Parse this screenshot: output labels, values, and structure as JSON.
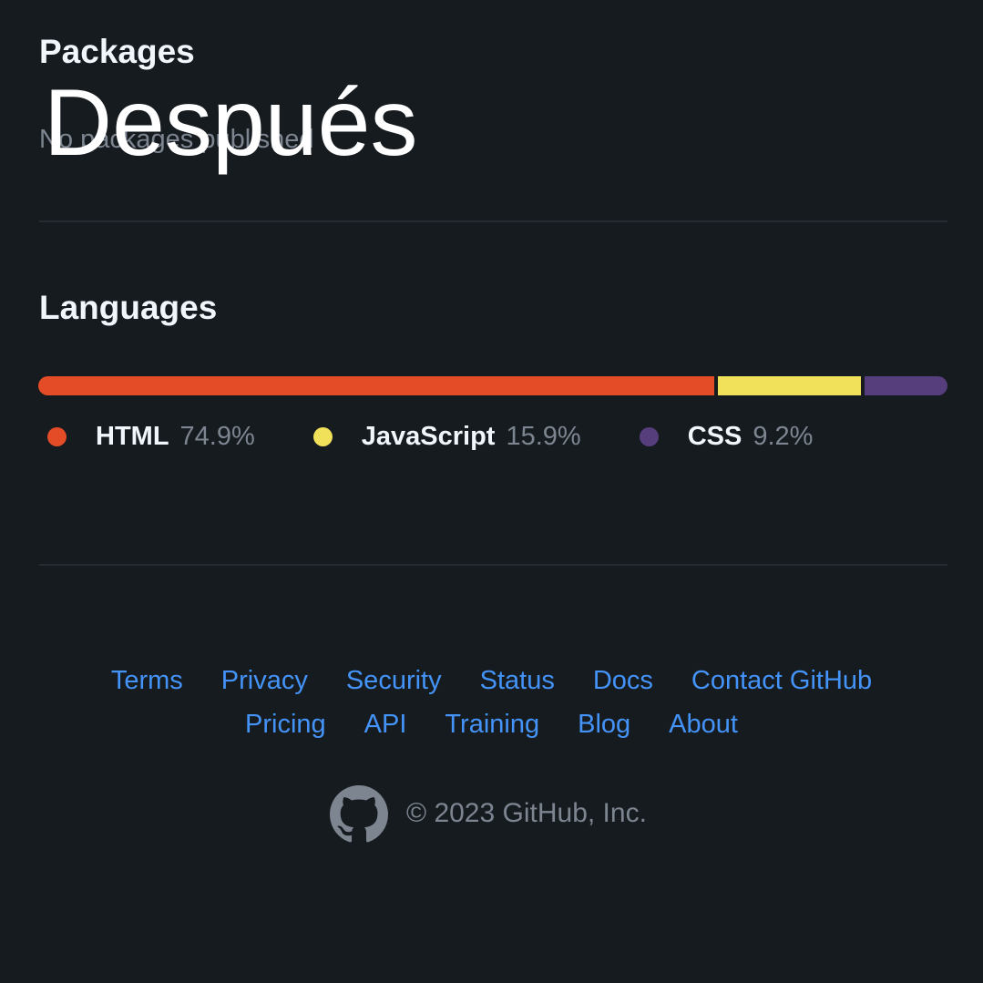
{
  "packages": {
    "title": "Packages",
    "empty_text": "No packages published"
  },
  "overlay_text": "Después",
  "languages": {
    "title": "Languages",
    "items": [
      {
        "name": "HTML",
        "percent": 74.9,
        "label": "74.9%",
        "color": "#e34c26"
      },
      {
        "name": "JavaScript",
        "percent": 15.9,
        "label": "15.9%",
        "color": "#f1e05a"
      },
      {
        "name": "CSS",
        "percent": 9.2,
        "label": "9.2%",
        "color": "#563d7c"
      }
    ]
  },
  "footer": {
    "links_row_1": [
      "Terms",
      "Privacy",
      "Security",
      "Status",
      "Docs",
      "Contact GitHub"
    ],
    "links_row_2": [
      "Pricing",
      "API",
      "Training",
      "Blog",
      "About"
    ],
    "copyright": "© 2023 GitHub, Inc."
  }
}
